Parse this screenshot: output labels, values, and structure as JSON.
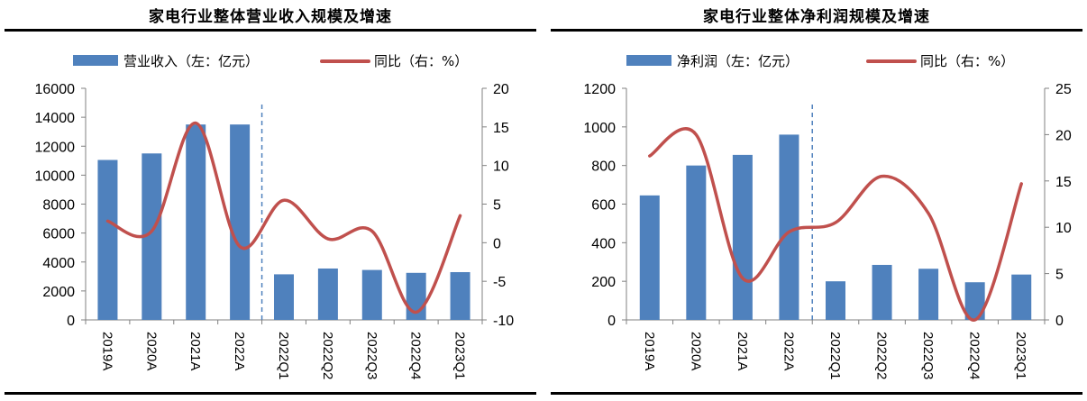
{
  "colors": {
    "bar": "#4f81bd",
    "line": "#c0504d",
    "divider": "#4f81bd",
    "axis": "#808080"
  },
  "chart_data": [
    {
      "type": "bar+line",
      "title": "家电行业整体营业收入规模及增速",
      "categories": [
        "2019A",
        "2020A",
        "2021A",
        "2022A",
        "2022Q1",
        "2022Q2",
        "2022Q3",
        "2022Q4",
        "2023Q1"
      ],
      "series": [
        {
          "name": "营业收入（左：亿元）",
          "type": "bar",
          "axis": "left",
          "values": [
            11050,
            11500,
            13500,
            13500,
            3150,
            3550,
            3450,
            3250,
            3300
          ]
        },
        {
          "name": "同比（右：%）",
          "type": "line",
          "axis": "right",
          "values": [
            2.8,
            1.5,
            15.5,
            -0.5,
            5.5,
            0.5,
            1.5,
            -9.0,
            3.5
          ]
        }
      ],
      "left_axis": {
        "min": 0,
        "max": 16000,
        "ticks": [
          "0",
          "2000",
          "4000",
          "6000",
          "8000",
          "10000",
          "12000",
          "14000",
          "16000"
        ]
      },
      "right_axis": {
        "min": -10,
        "max": 20,
        "ticks": [
          "-10",
          "-5",
          "0",
          "5",
          "10",
          "15",
          "20"
        ]
      },
      "divider_after_index": 3,
      "legend": "top",
      "grid": false
    },
    {
      "type": "bar+line",
      "title": "家电行业整体净利润规模及增速",
      "categories": [
        "2019A",
        "2020A",
        "2021A",
        "2022A",
        "2022Q1",
        "2022Q2",
        "2022Q3",
        "2022Q4",
        "2023Q1"
      ],
      "series": [
        {
          "name": "净利润（左：亿元）",
          "type": "bar",
          "axis": "left",
          "values": [
            645,
            800,
            855,
            960,
            200,
            285,
            265,
            195,
            235
          ]
        },
        {
          "name": "同比（右：%）",
          "type": "line",
          "axis": "right",
          "values": [
            17.7,
            20.0,
            4.5,
            9.5,
            10.5,
            15.5,
            11.5,
            0.0,
            14.7
          ]
        }
      ],
      "left_axis": {
        "min": 0,
        "max": 1200,
        "ticks": [
          "0",
          "200",
          "400",
          "600",
          "800",
          "1000",
          "1200"
        ]
      },
      "right_axis": {
        "min": 0,
        "max": 25,
        "ticks": [
          "0",
          "5",
          "10",
          "15",
          "20",
          "25"
        ]
      },
      "divider_after_index": 3,
      "legend": "top",
      "grid": false
    }
  ]
}
